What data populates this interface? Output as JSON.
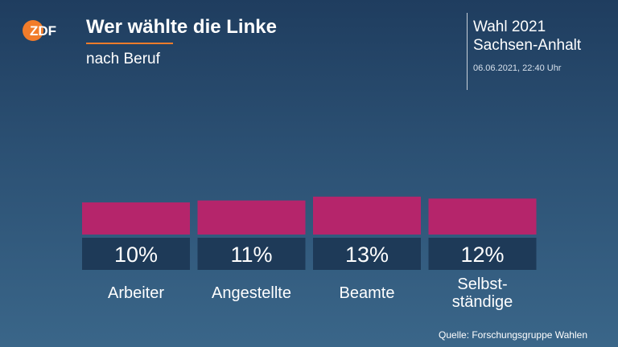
{
  "header": {
    "logo_text": "ZDF",
    "title": "Wer wählte die Linke",
    "subtitle": "nach Beruf",
    "election_line1": "Wahl 2021",
    "election_line2": "Sachsen-Anhalt",
    "timestamp": "06.06.2021, 22:40 Uhr"
  },
  "source": "Quelle: Forschungsgruppe Wahlen",
  "colors": {
    "bar": "#b5256b",
    "value_box": "#1e3a58",
    "accent": "#f27c2a"
  },
  "chart_data": {
    "type": "bar",
    "categories": [
      "Arbeiter",
      "Angestellte",
      "Beamte",
      "Selbst-ständige"
    ],
    "category_lines": [
      [
        "Arbeiter"
      ],
      [
        "Angestellte"
      ],
      [
        "Beamte"
      ],
      [
        "Selbst-",
        "ständige"
      ]
    ],
    "values": [
      10,
      11,
      13,
      12
    ],
    "value_labels": [
      "10%",
      "11%",
      "13%",
      "12%"
    ],
    "unit": "%",
    "title": "Wer wählte die Linke",
    "subtitle": "nach Beruf",
    "xlabel": "",
    "ylabel": "",
    "grid": false,
    "legend": "none"
  }
}
